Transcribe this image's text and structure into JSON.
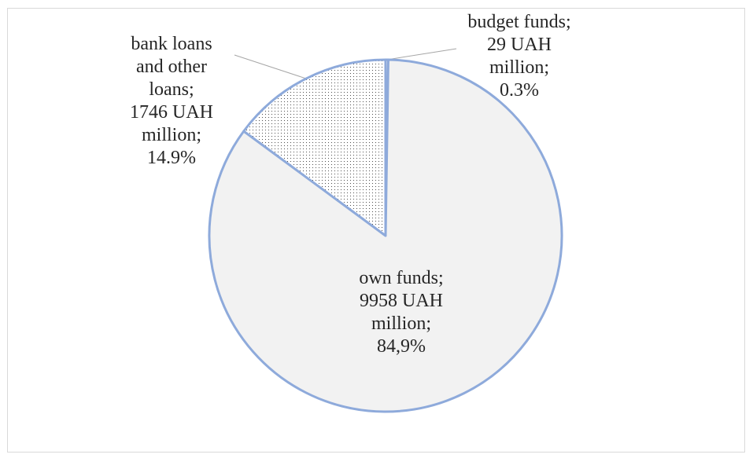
{
  "chart_data": {
    "type": "pie",
    "title": "",
    "slices": [
      {
        "name": "budget funds",
        "value": 29,
        "percent": 0.3,
        "label": "budget funds;\n29 UAH\nmillion;\n0.3%",
        "fill": "#f2f2f2",
        "pattern": "none"
      },
      {
        "name": "own funds",
        "value": 9958,
        "percent": 84.9,
        "label": "own funds;\n9958 UAH\nmillion;\n84,9%",
        "fill": "#f2f2f2",
        "pattern": "none"
      },
      {
        "name": "bank loans and other loans",
        "value": 1746,
        "percent": 14.9,
        "label": "bank loans\nand other\nloans;\n1746 UAH\nmillion;\n14.9%",
        "fill": "#ffffff",
        "pattern": "dots"
      }
    ],
    "start_angle": "12 o'clock",
    "direction": "clockwise",
    "legend": "none",
    "slice_border_color": "#8eaadb",
    "label_color": "#262626",
    "leader_line_color": "#a6a6a6"
  }
}
